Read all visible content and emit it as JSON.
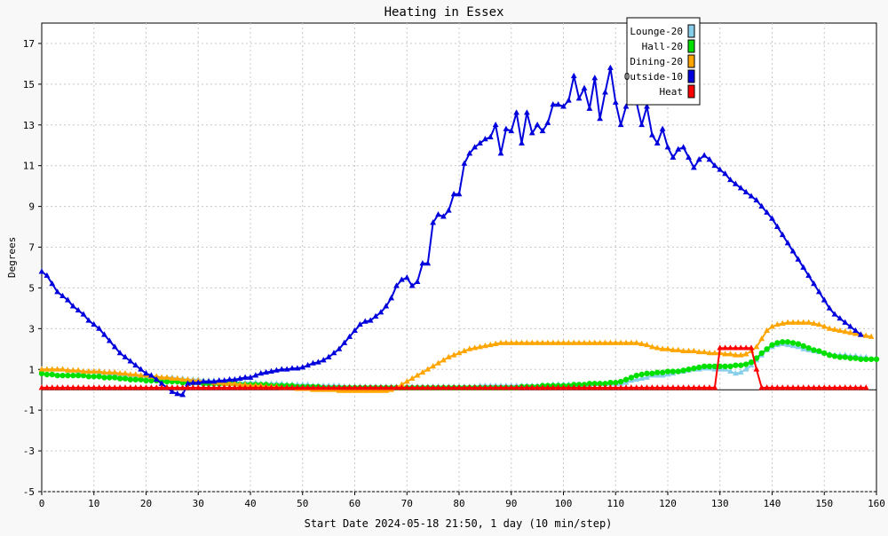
{
  "chart_data": {
    "type": "line",
    "title": "Heating in Essex",
    "xlabel": "Start Date 2024-05-18 21:50, 1 day (10 min/step)",
    "ylabel": "Degrees",
    "xlim": [
      0,
      160
    ],
    "ylim": [
      -5,
      18
    ],
    "x_ticks": [
      0,
      10,
      20,
      30,
      40,
      50,
      60,
      70,
      80,
      90,
      100,
      110,
      120,
      130,
      140,
      150,
      160
    ],
    "y_ticks": [
      -5,
      -3,
      -1,
      1,
      3,
      5,
      7,
      9,
      11,
      13,
      15,
      17
    ],
    "grid": true,
    "legend_position": "top-right",
    "series": [
      {
        "name": "Lounge-20",
        "color": "#87ceeb",
        "marker": "triangle",
        "values": [
          1.0,
          1.0,
          1.0,
          1.0,
          1.0,
          0.95,
          0.95,
          0.9,
          0.9,
          0.9,
          0.9,
          0.85,
          0.85,
          0.8,
          0.8,
          0.75,
          0.75,
          0.7,
          0.7,
          0.7,
          0.65,
          0.65,
          0.65,
          0.6,
          0.6,
          0.6,
          0.55,
          0.55,
          0.5,
          0.5,
          0.5,
          0.45,
          0.45,
          0.45,
          0.4,
          0.4,
          0.4,
          0.4,
          0.35,
          0.35,
          0.35,
          0.35,
          0.3,
          0.3,
          0.3,
          0.3,
          0.3,
          0.25,
          0.25,
          0.25,
          0.25,
          0.25,
          0.2,
          0.2,
          0.2,
          0.2,
          0.2,
          0.2,
          0.15,
          0.15,
          0.15,
          0.15,
          0.15,
          0.15,
          0.15,
          0.15,
          0.15,
          0.15,
          0.15,
          0.15,
          0.15,
          0.15,
          0.15,
          0.15,
          0.15,
          0.15,
          0.15,
          0.15,
          0.15,
          0.15,
          0.15,
          0.15,
          0.15,
          0.15,
          0.2,
          0.2,
          0.2,
          0.2,
          0.2,
          0.2,
          0.2,
          0.2,
          0.2,
          0.2,
          0.2,
          0.2,
          0.2,
          0.2,
          0.25,
          0.25,
          0.25,
          0.25,
          0.25,
          0.25,
          0.25,
          0.25,
          0.3,
          0.3,
          0.3,
          0.3,
          0.3,
          0.3,
          0.35,
          0.45,
          0.5,
          0.55,
          0.6,
          0.7,
          0.7,
          0.7,
          0.75,
          0.8,
          0.9,
          0.9,
          0.95,
          1.0,
          1.0,
          1.05,
          1.05,
          1.0,
          1.0,
          1.0,
          0.9,
          0.8,
          0.85,
          1.0,
          1.2,
          1.45,
          1.7,
          1.95,
          2.1,
          2.2,
          2.25,
          2.2,
          2.15,
          2.1,
          2.0,
          1.95,
          1.9,
          1.85,
          1.8,
          1.75,
          1.7,
          1.7,
          1.7,
          1.65,
          1.65,
          1.6,
          1.6
        ]
      },
      {
        "name": "Hall-20",
        "color": "#00e000",
        "marker": "circle",
        "values": [
          0.8,
          0.75,
          0.75,
          0.7,
          0.7,
          0.7,
          0.7,
          0.7,
          0.7,
          0.65,
          0.65,
          0.65,
          0.6,
          0.6,
          0.6,
          0.55,
          0.55,
          0.5,
          0.5,
          0.5,
          0.45,
          0.45,
          0.45,
          0.4,
          0.4,
          0.4,
          0.4,
          0.35,
          0.35,
          0.35,
          0.35,
          0.3,
          0.3,
          0.3,
          0.3,
          0.3,
          0.3,
          0.3,
          0.25,
          0.25,
          0.25,
          0.25,
          0.25,
          0.25,
          0.2,
          0.2,
          0.2,
          0.2,
          0.2,
          0.15,
          0.15,
          0.15,
          0.15,
          0.15,
          0.1,
          0.1,
          0.1,
          0.1,
          0.1,
          0.1,
          0.1,
          0.1,
          0.1,
          0.1,
          0.1,
          0.1,
          0.1,
          0.1,
          0.1,
          0.1,
          0.1,
          0.1,
          0.1,
          0.1,
          0.1,
          0.1,
          0.1,
          0.1,
          0.1,
          0.1,
          0.1,
          0.1,
          0.1,
          0.1,
          0.1,
          0.1,
          0.1,
          0.1,
          0.1,
          0.1,
          0.1,
          0.1,
          0.15,
          0.15,
          0.15,
          0.15,
          0.2,
          0.2,
          0.2,
          0.2,
          0.2,
          0.2,
          0.25,
          0.25,
          0.25,
          0.3,
          0.3,
          0.3,
          0.3,
          0.35,
          0.35,
          0.4,
          0.5,
          0.6,
          0.7,
          0.75,
          0.8,
          0.8,
          0.85,
          0.85,
          0.9,
          0.9,
          0.9,
          0.95,
          1.0,
          1.05,
          1.1,
          1.15,
          1.15,
          1.15,
          1.15,
          1.15,
          1.15,
          1.2,
          1.2,
          1.25,
          1.35,
          1.55,
          1.8,
          2.0,
          2.2,
          2.3,
          2.35,
          2.35,
          2.3,
          2.25,
          2.15,
          2.05,
          1.95,
          1.9,
          1.8,
          1.7,
          1.65,
          1.6,
          1.6,
          1.55,
          1.55,
          1.5,
          1.5,
          1.5,
          1.5
        ]
      },
      {
        "name": "Dining-20",
        "color": "#ffa500",
        "marker": "triangle",
        "values": [
          1.0,
          1.0,
          1.0,
          1.0,
          1.0,
          0.95,
          0.95,
          0.95,
          0.9,
          0.9,
          0.9,
          0.9,
          0.85,
          0.85,
          0.85,
          0.8,
          0.8,
          0.75,
          0.75,
          0.7,
          0.7,
          0.65,
          0.65,
          0.6,
          0.6,
          0.55,
          0.55,
          0.5,
          0.5,
          0.45,
          0.45,
          0.4,
          0.4,
          0.35,
          0.35,
          0.3,
          0.3,
          0.3,
          0.25,
          0.25,
          0.2,
          0.2,
          0.2,
          0.15,
          0.15,
          0.15,
          0.1,
          0.1,
          0.1,
          0.05,
          0.05,
          0.05,
          0.0,
          0.0,
          0.0,
          0.0,
          0.0,
          -0.05,
          -0.05,
          -0.05,
          -0.05,
          -0.05,
          -0.05,
          -0.05,
          -0.05,
          -0.05,
          -0.05,
          0.0,
          0.1,
          0.25,
          0.4,
          0.55,
          0.7,
          0.85,
          1.0,
          1.15,
          1.3,
          1.45,
          1.6,
          1.7,
          1.8,
          1.9,
          2.0,
          2.05,
          2.1,
          2.15,
          2.2,
          2.25,
          2.3,
          2.3,
          2.3,
          2.3,
          2.3,
          2.3,
          2.3,
          2.3,
          2.3,
          2.3,
          2.3,
          2.3,
          2.3,
          2.3,
          2.3,
          2.3,
          2.3,
          2.3,
          2.3,
          2.3,
          2.3,
          2.3,
          2.3,
          2.3,
          2.3,
          2.3,
          2.3,
          2.25,
          2.2,
          2.1,
          2.05,
          2.0,
          2.0,
          1.95,
          1.95,
          1.9,
          1.9,
          1.9,
          1.85,
          1.85,
          1.8,
          1.8,
          1.8,
          1.75,
          1.75,
          1.7,
          1.7,
          1.75,
          1.9,
          2.1,
          2.5,
          2.9,
          3.1,
          3.2,
          3.25,
          3.3,
          3.3,
          3.3,
          3.3,
          3.3,
          3.25,
          3.2,
          3.1,
          3.0,
          2.95,
          2.9,
          2.85,
          2.8,
          2.75,
          2.7,
          2.65,
          2.6
        ]
      },
      {
        "name": "Outside-10",
        "color": "#0000dd",
        "marker": "triangle",
        "values": [
          5.8,
          5.6,
          5.2,
          4.8,
          4.6,
          4.4,
          4.1,
          3.9,
          3.7,
          3.4,
          3.2,
          3.0,
          2.7,
          2.4,
          2.1,
          1.8,
          1.6,
          1.4,
          1.2,
          1.0,
          0.8,
          0.7,
          0.5,
          0.3,
          0.1,
          -0.1,
          -0.2,
          -0.25,
          0.3,
          0.35,
          0.35,
          0.4,
          0.4,
          0.4,
          0.45,
          0.45,
          0.5,
          0.5,
          0.55,
          0.6,
          0.6,
          0.7,
          0.8,
          0.85,
          0.9,
          0.95,
          1.0,
          1.0,
          1.05,
          1.05,
          1.1,
          1.2,
          1.3,
          1.35,
          1.45,
          1.6,
          1.8,
          2.0,
          2.3,
          2.6,
          2.9,
          3.2,
          3.35,
          3.4,
          3.6,
          3.8,
          4.1,
          4.5,
          5.1,
          5.4,
          5.5,
          5.1,
          5.3,
          6.2,
          6.2,
          8.2,
          8.6,
          8.5,
          8.8,
          9.6,
          9.6,
          11.1,
          11.6,
          11.9,
          12.1,
          12.3,
          12.4,
          13.0,
          11.6,
          12.8,
          12.7,
          13.6,
          12.1,
          13.6,
          12.6,
          13.0,
          12.7,
          13.1,
          14.0,
          14.0,
          13.9,
          14.2,
          15.4,
          14.3,
          14.8,
          13.8,
          15.3,
          13.3,
          14.6,
          15.8,
          14.1,
          13.0,
          13.9,
          14.5,
          14.1,
          13.0,
          13.9,
          12.5,
          12.1,
          12.8,
          11.9,
          11.4,
          11.8,
          11.9,
          11.4,
          10.9,
          11.3,
          11.5,
          11.3,
          11.0,
          10.8,
          10.6,
          10.3,
          10.1,
          9.9,
          9.7,
          9.5,
          9.3,
          9.0,
          8.7,
          8.4,
          8.0,
          7.6,
          7.2,
          6.8,
          6.4,
          6.0,
          5.6,
          5.2,
          4.8,
          4.4,
          4.0,
          3.7,
          3.5,
          3.3,
          3.1,
          2.9,
          2.7
        ]
      },
      {
        "name": "Heat",
        "color": "#ff0000",
        "marker": "triangle",
        "values": [
          0.1,
          0.1,
          0.1,
          0.1,
          0.1,
          0.1,
          0.1,
          0.1,
          0.1,
          0.1,
          0.1,
          0.1,
          0.1,
          0.1,
          0.1,
          0.1,
          0.1,
          0.1,
          0.1,
          0.1,
          0.1,
          0.1,
          0.1,
          0.1,
          0.1,
          0.1,
          0.1,
          0.1,
          0.1,
          0.1,
          0.1,
          0.1,
          0.1,
          0.1,
          0.1,
          0.1,
          0.1,
          0.1,
          0.1,
          0.1,
          0.1,
          0.1,
          0.1,
          0.1,
          0.1,
          0.1,
          0.1,
          0.1,
          0.1,
          0.1,
          0.1,
          0.1,
          0.1,
          0.1,
          0.1,
          0.1,
          0.1,
          0.1,
          0.1,
          0.1,
          0.1,
          0.1,
          0.1,
          0.1,
          0.1,
          0.1,
          0.1,
          0.1,
          0.1,
          0.1,
          0.1,
          0.1,
          0.1,
          0.1,
          0.1,
          0.1,
          0.1,
          0.1,
          0.1,
          0.1,
          0.1,
          0.1,
          0.1,
          0.1,
          0.1,
          0.1,
          0.1,
          0.1,
          0.1,
          0.1,
          0.1,
          0.1,
          0.1,
          0.1,
          0.1,
          0.1,
          0.1,
          0.1,
          0.1,
          0.1,
          0.1,
          0.1,
          0.1,
          0.1,
          0.1,
          0.1,
          0.1,
          0.1,
          0.1,
          0.1,
          0.1,
          0.1,
          0.1,
          0.1,
          0.1,
          0.1,
          0.1,
          0.1,
          0.1,
          0.1,
          0.1,
          0.1,
          0.1,
          0.1,
          0.1,
          0.1,
          0.1,
          0.1,
          0.1,
          0.1,
          2.05,
          2.05,
          2.05,
          2.05,
          2.05,
          2.05,
          2.05,
          1.0,
          0.1,
          0.1,
          0.1,
          0.1,
          0.1,
          0.1,
          0.1,
          0.1,
          0.1,
          0.1,
          0.1,
          0.1,
          0.1,
          0.1,
          0.1,
          0.1,
          0.1,
          0.1,
          0.1,
          0.1,
          0.1
        ]
      }
    ]
  }
}
